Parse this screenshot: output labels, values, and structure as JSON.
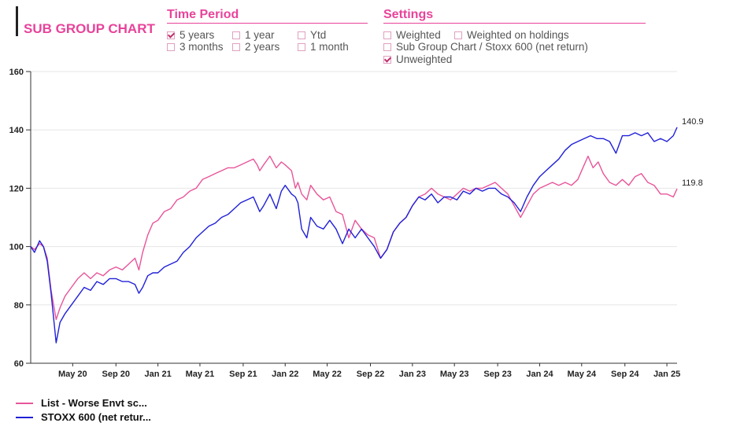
{
  "header": {
    "title": "SUB GROUP CHART"
  },
  "time_period": {
    "heading": "Time Period",
    "options": [
      {
        "label": "5 years",
        "checked": true
      },
      {
        "label": "1 year",
        "checked": false
      },
      {
        "label": "Ytd",
        "checked": false
      },
      {
        "label": "3 months",
        "checked": false
      },
      {
        "label": "2 years",
        "checked": false
      },
      {
        "label": "1 month",
        "checked": false
      }
    ]
  },
  "settings": {
    "heading": "Settings",
    "options": [
      {
        "label": "Weighted",
        "checked": false
      },
      {
        "label": "Weighted on holdings",
        "checked": false
      },
      {
        "label": "Sub Group Chart / Stoxx 600 (net return)",
        "checked": false
      },
      {
        "label": "Unweighted",
        "checked": true
      }
    ]
  },
  "chart_data": {
    "type": "line",
    "ylim": [
      60,
      160
    ],
    "yticks": [
      60,
      80,
      100,
      120,
      140,
      160
    ],
    "xlim": [
      2020.0,
      2025.08
    ],
    "xticks": [
      {
        "label": "May 20",
        "x": 2020.33
      },
      {
        "label": "Sep 20",
        "x": 2020.67
      },
      {
        "label": "Jan 21",
        "x": 2021.0
      },
      {
        "label": "May 21",
        "x": 2021.33
      },
      {
        "label": "Sep 21",
        "x": 2021.67
      },
      {
        "label": "Jan 22",
        "x": 2022.0
      },
      {
        "label": "May 22",
        "x": 2022.33
      },
      {
        "label": "Sep 22",
        "x": 2022.67
      },
      {
        "label": "Jan 23",
        "x": 2023.0
      },
      {
        "label": "May 23",
        "x": 2023.33
      },
      {
        "label": "Sep 23",
        "x": 2023.67
      },
      {
        "label": "Jan 24",
        "x": 2024.0
      },
      {
        "label": "May 24",
        "x": 2024.33
      },
      {
        "label": "Sep 24",
        "x": 2024.67
      },
      {
        "label": "Jan 25",
        "x": 2025.0
      }
    ],
    "series": [
      {
        "name": "List - Worse Envt sc...",
        "color": "#e8559a",
        "end_label": "119.8",
        "points": [
          [
            2020.0,
            100
          ],
          [
            2020.03,
            99
          ],
          [
            2020.07,
            101
          ],
          [
            2020.1,
            100
          ],
          [
            2020.13,
            96
          ],
          [
            2020.16,
            85
          ],
          [
            2020.2,
            75
          ],
          [
            2020.23,
            79
          ],
          [
            2020.27,
            83
          ],
          [
            2020.32,
            86
          ],
          [
            2020.37,
            89
          ],
          [
            2020.42,
            91
          ],
          [
            2020.47,
            89
          ],
          [
            2020.52,
            91
          ],
          [
            2020.57,
            90
          ],
          [
            2020.62,
            92
          ],
          [
            2020.67,
            93
          ],
          [
            2020.72,
            92
          ],
          [
            2020.77,
            94
          ],
          [
            2020.82,
            96
          ],
          [
            2020.85,
            92
          ],
          [
            2020.88,
            98
          ],
          [
            2020.92,
            104
          ],
          [
            2020.96,
            108
          ],
          [
            2021.0,
            109
          ],
          [
            2021.05,
            112
          ],
          [
            2021.1,
            113
          ],
          [
            2021.15,
            116
          ],
          [
            2021.2,
            117
          ],
          [
            2021.25,
            119
          ],
          [
            2021.3,
            120
          ],
          [
            2021.35,
            123
          ],
          [
            2021.4,
            124
          ],
          [
            2021.45,
            125
          ],
          [
            2021.5,
            126
          ],
          [
            2021.55,
            127
          ],
          [
            2021.6,
            127
          ],
          [
            2021.65,
            128
          ],
          [
            2021.7,
            129
          ],
          [
            2021.75,
            130
          ],
          [
            2021.78,
            128
          ],
          [
            2021.8,
            126
          ],
          [
            2021.83,
            128
          ],
          [
            2021.88,
            131
          ],
          [
            2021.93,
            127
          ],
          [
            2021.97,
            129
          ],
          [
            2022.0,
            128
          ],
          [
            2022.05,
            126
          ],
          [
            2022.08,
            120
          ],
          [
            2022.1,
            122
          ],
          [
            2022.13,
            118
          ],
          [
            2022.17,
            116
          ],
          [
            2022.2,
            121
          ],
          [
            2022.25,
            118
          ],
          [
            2022.3,
            116
          ],
          [
            2022.35,
            117
          ],
          [
            2022.4,
            112
          ],
          [
            2022.45,
            111
          ],
          [
            2022.5,
            103
          ],
          [
            2022.55,
            109
          ],
          [
            2022.6,
            106
          ],
          [
            2022.65,
            104
          ],
          [
            2022.7,
            103
          ],
          [
            2022.75,
            96
          ],
          [
            2022.8,
            99
          ],
          [
            2022.85,
            105
          ],
          [
            2022.9,
            108
          ],
          [
            2022.95,
            110
          ],
          [
            2023.0,
            114
          ],
          [
            2023.05,
            117
          ],
          [
            2023.1,
            118
          ],
          [
            2023.15,
            120
          ],
          [
            2023.2,
            118
          ],
          [
            2023.25,
            117
          ],
          [
            2023.3,
            116
          ],
          [
            2023.35,
            118
          ],
          [
            2023.4,
            120
          ],
          [
            2023.45,
            119
          ],
          [
            2023.5,
            120
          ],
          [
            2023.55,
            120
          ],
          [
            2023.6,
            121
          ],
          [
            2023.65,
            122
          ],
          [
            2023.7,
            120
          ],
          [
            2023.75,
            118
          ],
          [
            2023.8,
            114
          ],
          [
            2023.85,
            110
          ],
          [
            2023.9,
            114
          ],
          [
            2023.95,
            118
          ],
          [
            2024.0,
            120
          ],
          [
            2024.05,
            121
          ],
          [
            2024.1,
            122
          ],
          [
            2024.15,
            121
          ],
          [
            2024.2,
            122
          ],
          [
            2024.25,
            121
          ],
          [
            2024.3,
            123
          ],
          [
            2024.35,
            128
          ],
          [
            2024.38,
            131
          ],
          [
            2024.42,
            127
          ],
          [
            2024.46,
            129
          ],
          [
            2024.5,
            125
          ],
          [
            2024.55,
            122
          ],
          [
            2024.6,
            121
          ],
          [
            2024.65,
            123
          ],
          [
            2024.7,
            121
          ],
          [
            2024.75,
            124
          ],
          [
            2024.8,
            125
          ],
          [
            2024.85,
            122
          ],
          [
            2024.9,
            121
          ],
          [
            2024.95,
            118
          ],
          [
            2025.0,
            118
          ],
          [
            2025.05,
            117
          ],
          [
            2025.08,
            119.8
          ]
        ]
      },
      {
        "name": "STOXX 600 (net retur...",
        "color": "#2020d8",
        "end_label": "140.9",
        "points": [
          [
            2020.0,
            100
          ],
          [
            2020.03,
            98
          ],
          [
            2020.07,
            102
          ],
          [
            2020.1,
            100
          ],
          [
            2020.13,
            95
          ],
          [
            2020.16,
            84
          ],
          [
            2020.2,
            67
          ],
          [
            2020.23,
            74
          ],
          [
            2020.27,
            77
          ],
          [
            2020.32,
            80
          ],
          [
            2020.37,
            83
          ],
          [
            2020.42,
            86
          ],
          [
            2020.47,
            85
          ],
          [
            2020.52,
            88
          ],
          [
            2020.57,
            87
          ],
          [
            2020.62,
            89
          ],
          [
            2020.67,
            89
          ],
          [
            2020.72,
            88
          ],
          [
            2020.77,
            88
          ],
          [
            2020.82,
            87
          ],
          [
            2020.85,
            84
          ],
          [
            2020.88,
            86
          ],
          [
            2020.92,
            90
          ],
          [
            2020.96,
            91
          ],
          [
            2021.0,
            91
          ],
          [
            2021.05,
            93
          ],
          [
            2021.1,
            94
          ],
          [
            2021.15,
            95
          ],
          [
            2021.2,
            98
          ],
          [
            2021.25,
            100
          ],
          [
            2021.3,
            103
          ],
          [
            2021.35,
            105
          ],
          [
            2021.4,
            107
          ],
          [
            2021.45,
            108
          ],
          [
            2021.5,
            110
          ],
          [
            2021.55,
            111
          ],
          [
            2021.6,
            113
          ],
          [
            2021.65,
            115
          ],
          [
            2021.7,
            116
          ],
          [
            2021.75,
            117
          ],
          [
            2021.78,
            114
          ],
          [
            2021.8,
            112
          ],
          [
            2021.83,
            114
          ],
          [
            2021.88,
            118
          ],
          [
            2021.93,
            113
          ],
          [
            2021.97,
            119
          ],
          [
            2022.0,
            121
          ],
          [
            2022.05,
            118
          ],
          [
            2022.08,
            117
          ],
          [
            2022.1,
            115
          ],
          [
            2022.13,
            106
          ],
          [
            2022.17,
            103
          ],
          [
            2022.2,
            110
          ],
          [
            2022.25,
            107
          ],
          [
            2022.3,
            106
          ],
          [
            2022.35,
            109
          ],
          [
            2022.4,
            106
          ],
          [
            2022.45,
            101
          ],
          [
            2022.5,
            106
          ],
          [
            2022.55,
            103
          ],
          [
            2022.6,
            106
          ],
          [
            2022.65,
            103
          ],
          [
            2022.7,
            100
          ],
          [
            2022.75,
            96
          ],
          [
            2022.8,
            99
          ],
          [
            2022.85,
            105
          ],
          [
            2022.9,
            108
          ],
          [
            2022.95,
            110
          ],
          [
            2023.0,
            114
          ],
          [
            2023.05,
            117
          ],
          [
            2023.1,
            116
          ],
          [
            2023.15,
            118
          ],
          [
            2023.2,
            115
          ],
          [
            2023.25,
            117
          ],
          [
            2023.3,
            117
          ],
          [
            2023.35,
            116
          ],
          [
            2023.4,
            119
          ],
          [
            2023.45,
            118
          ],
          [
            2023.5,
            120
          ],
          [
            2023.55,
            119
          ],
          [
            2023.6,
            120
          ],
          [
            2023.65,
            120
          ],
          [
            2023.7,
            118
          ],
          [
            2023.75,
            117
          ],
          [
            2023.8,
            115
          ],
          [
            2023.85,
            112
          ],
          [
            2023.9,
            117
          ],
          [
            2023.95,
            121
          ],
          [
            2024.0,
            124
          ],
          [
            2024.05,
            126
          ],
          [
            2024.1,
            128
          ],
          [
            2024.15,
            130
          ],
          [
            2024.2,
            133
          ],
          [
            2024.25,
            135
          ],
          [
            2024.3,
            136
          ],
          [
            2024.35,
            137
          ],
          [
            2024.4,
            138
          ],
          [
            2024.45,
            137
          ],
          [
            2024.5,
            137
          ],
          [
            2024.55,
            136
          ],
          [
            2024.6,
            132
          ],
          [
            2024.65,
            138
          ],
          [
            2024.7,
            138
          ],
          [
            2024.75,
            139
          ],
          [
            2024.8,
            138
          ],
          [
            2024.85,
            139
          ],
          [
            2024.9,
            136
          ],
          [
            2024.95,
            137
          ],
          [
            2025.0,
            136
          ],
          [
            2025.05,
            138
          ],
          [
            2025.08,
            140.9
          ]
        ]
      }
    ]
  }
}
